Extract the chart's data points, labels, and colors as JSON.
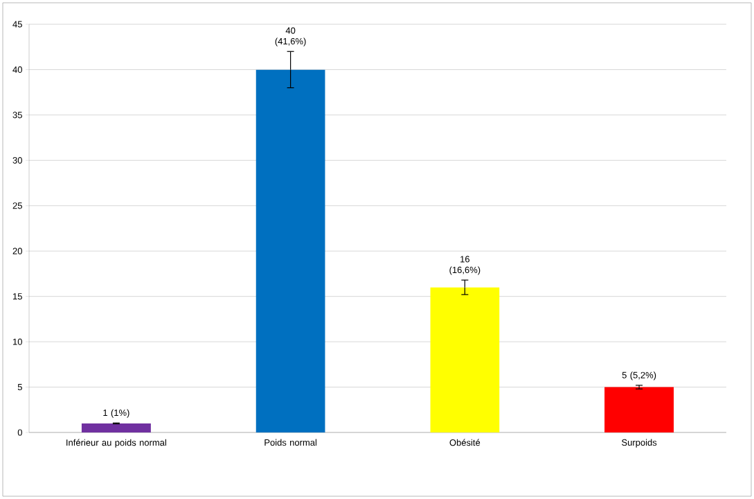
{
  "chart_data": {
    "type": "bar",
    "categories": [
      "Inférieur au poids normal",
      "Poids normal",
      "Obésité",
      "Surpoids"
    ],
    "values": [
      1,
      40,
      16,
      5
    ],
    "colors": [
      "#7030a0",
      "#0070c0",
      "#ffff00",
      "#ff0000"
    ],
    "errors": [
      0.05,
      2,
      0.8,
      0.2
    ],
    "value_labels": [
      "1 (1%)",
      "40 (41,6%)",
      "16 (16,6%)",
      "5 (5,2%)"
    ],
    "ylim": [
      0,
      45
    ],
    "yticks": [
      0,
      5,
      10,
      15,
      20,
      25,
      30,
      35,
      40,
      45
    ],
    "grid": "y"
  }
}
